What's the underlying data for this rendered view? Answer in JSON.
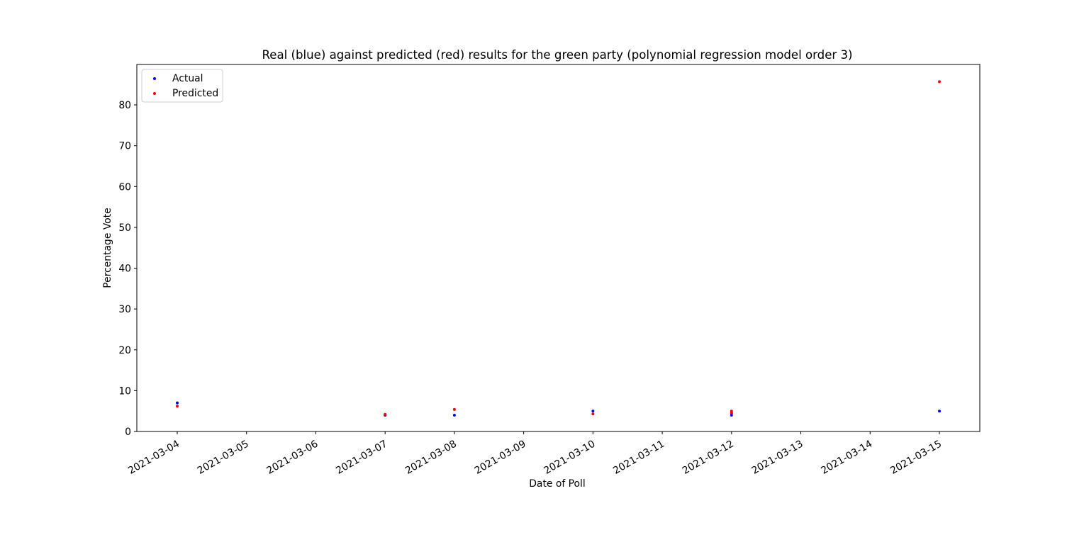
{
  "chart_data": {
    "type": "scatter",
    "title": "Real (blue) against predicted (red) results for the green party (polynomial regression model order 3)",
    "xlabel": "Date of Poll",
    "ylabel": "Percentage Vote",
    "x_ticks": [
      "2021-03-04",
      "2021-03-05",
      "2021-03-06",
      "2021-03-07",
      "2021-03-08",
      "2021-03-09",
      "2021-03-10",
      "2021-03-11",
      "2021-03-12",
      "2021-03-13",
      "2021-03-14",
      "2021-03-15"
    ],
    "y_ticks": [
      0,
      10,
      20,
      30,
      40,
      50,
      60,
      70,
      80
    ],
    "xlim": [
      "2021-03-03T10:00",
      "2021-03-15T14:00"
    ],
    "ylim": [
      0,
      89.9
    ],
    "grid": false,
    "legend_position": "top-left",
    "series": [
      {
        "name": "Actual",
        "color": "#0000ff",
        "points": [
          {
            "x": "2021-03-04",
            "y": 7.0
          },
          {
            "x": "2021-03-07",
            "y": 4.0
          },
          {
            "x": "2021-03-08",
            "y": 4.0
          },
          {
            "x": "2021-03-10",
            "y": 5.0
          },
          {
            "x": "2021-03-12",
            "y": 4.0
          },
          {
            "x": "2021-03-12",
            "y": 4.5
          },
          {
            "x": "2021-03-15",
            "y": 5.0
          }
        ]
      },
      {
        "name": "Predicted",
        "color": "#ff0000",
        "points": [
          {
            "x": "2021-03-04",
            "y": 6.2
          },
          {
            "x": "2021-03-07",
            "y": 4.2
          },
          {
            "x": "2021-03-08",
            "y": 5.4
          },
          {
            "x": "2021-03-10",
            "y": 4.3
          },
          {
            "x": "2021-03-12",
            "y": 4.6
          },
          {
            "x": "2021-03-12",
            "y": 5.0
          },
          {
            "x": "2021-03-15",
            "y": 85.7
          }
        ]
      }
    ]
  }
}
